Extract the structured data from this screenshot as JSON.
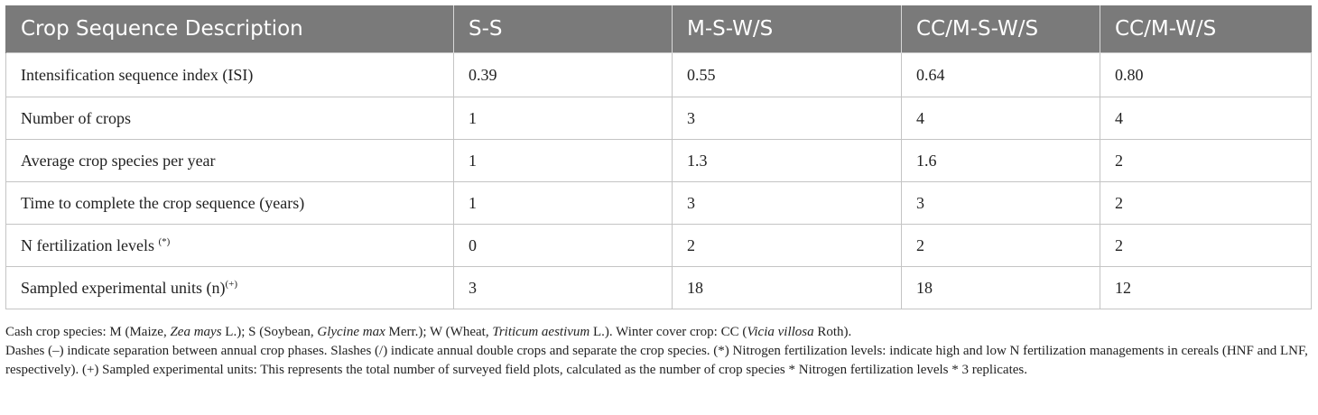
{
  "table": {
    "headers": [
      "Crop Sequence Description",
      "S-S",
      "M-S-W/S",
      "CC/M-S-W/S",
      "CC/M-W/S"
    ],
    "rows": [
      {
        "label": "Intensification sequence index (ISI)",
        "sup": "",
        "values": [
          "0.39",
          "0.55",
          "0.64",
          "0.80"
        ]
      },
      {
        "label": "Number of crops",
        "sup": "",
        "values": [
          "1",
          "3",
          "4",
          "4"
        ]
      },
      {
        "label": "Average crop species per year",
        "sup": "",
        "values": [
          "1",
          "1.3",
          "1.6",
          "2"
        ]
      },
      {
        "label": "Time to complete the crop sequence (years)",
        "sup": "",
        "values": [
          "1",
          "3",
          "3",
          "2"
        ]
      },
      {
        "label": "N fertilization levels ",
        "sup": "(*)",
        "values": [
          "0",
          "2",
          "2",
          "2"
        ]
      },
      {
        "label": "Sampled experimental units (n)",
        "sup": "(+)",
        "values": [
          "3",
          "18",
          "18",
          "12"
        ]
      }
    ]
  },
  "footnotes": {
    "line1": {
      "a": "Cash crop species: M (Maize, ",
      "a_i": "Zea mays",
      "b": " L.); S (Soybean, ",
      "b_i": "Glycine max",
      "c": " Merr.); W (Wheat, ",
      "c_i": "Triticum aestivum",
      "d": " L.). Winter cover crop: CC (",
      "d_i": "Vicia villosa",
      "e": " Roth)."
    },
    "line2": "Dashes (–) indicate separation between annual crop phases. Slashes (/) indicate annual double crops and separate the crop species. (*) Nitrogen fertilization levels: indicate high and low N fertilization managements in cereals (HNF and LNF, respectively). (+) Sampled experimental units: This represents the total number of surveyed field plots, calculated as the number of crop species * Nitrogen fertilization levels * 3 replicates."
  }
}
